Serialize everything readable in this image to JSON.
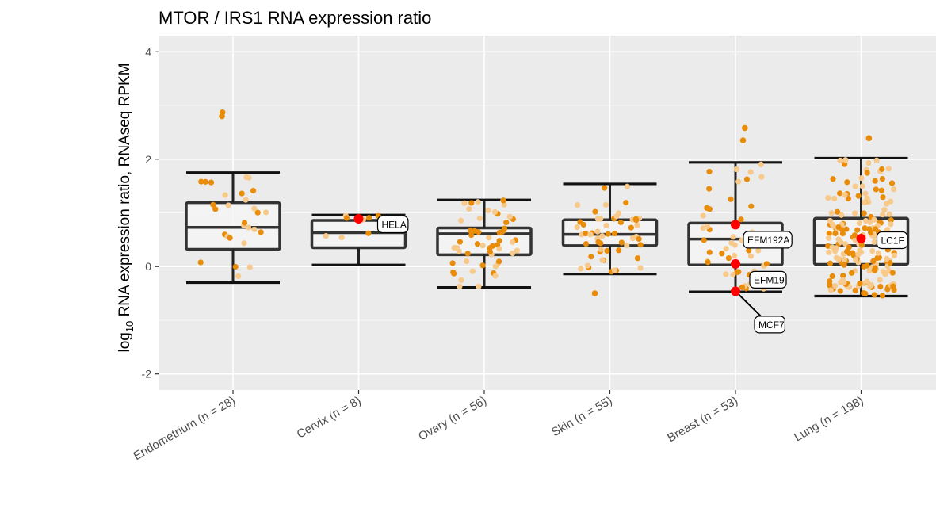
{
  "chart_data": {
    "type": "box",
    "title": "MTOR / IRS1 RNA expression ratio",
    "ylabel_main": "log",
    "ylabel_sub": "10",
    "ylabel_rest": " RNA expression ratio, RNAseq RPKM",
    "xlabel": "",
    "ylim": [
      -2.3,
      4.3
    ],
    "yticks": [
      -2,
      0,
      2,
      4
    ],
    "grid": true,
    "categories": [
      "Endometrium (n = 28)",
      "Cervix (n = 8)",
      "Ovary (n = 56)",
      "Skin (n = 55)",
      "Breast (n = 53)",
      "Lung (n = 198)"
    ],
    "boxes": [
      {
        "min": -0.3,
        "q1": 0.32,
        "median": 0.73,
        "q3": 1.19,
        "max": 1.75,
        "n": 28
      },
      {
        "min": 0.03,
        "q1": 0.35,
        "median": 0.63,
        "q3": 0.86,
        "max": 0.96,
        "n": 8
      },
      {
        "min": -0.39,
        "q1": 0.22,
        "median": 0.61,
        "q3": 0.72,
        "max": 1.24,
        "n": 56
      },
      {
        "min": -0.14,
        "q1": 0.39,
        "median": 0.6,
        "q3": 0.87,
        "max": 1.54,
        "n": 55
      },
      {
        "min": -0.47,
        "q1": 0.03,
        "median": 0.51,
        "q3": 0.81,
        "max": 1.94,
        "n": 53
      },
      {
        "min": -0.55,
        "q1": 0.04,
        "median": 0.39,
        "q3": 0.9,
        "max": 2.02,
        "n": 198
      }
    ],
    "outliers": [
      {
        "category": 0,
        "value": 2.87
      },
      {
        "category": 0,
        "value": 2.8
      },
      {
        "category": 4,
        "value": 2.58
      },
      {
        "category": 4,
        "value": 2.35
      },
      {
        "category": 5,
        "value": 2.39
      },
      {
        "category": 3,
        "value": -0.5
      }
    ],
    "highlighted": [
      {
        "category": 1,
        "value": 0.89,
        "label": "HELA"
      },
      {
        "category": 4,
        "value": 0.78,
        "label": "EFM192A"
      },
      {
        "category": 4,
        "value": 0.05,
        "label": "EFM19"
      },
      {
        "category": 4,
        "value": -0.46,
        "label": "MCF7"
      },
      {
        "category": 5,
        "value": 0.52,
        "label": "LC1F"
      }
    ],
    "colors": {
      "point_dark": "#e88c0a",
      "point_light": "#f7c98b",
      "highlight": "#ff0000",
      "panel": "#ebebeb",
      "grid": "#ffffff",
      "box_fill": "#f5f5f5",
      "box_stroke": "#333333"
    }
  }
}
